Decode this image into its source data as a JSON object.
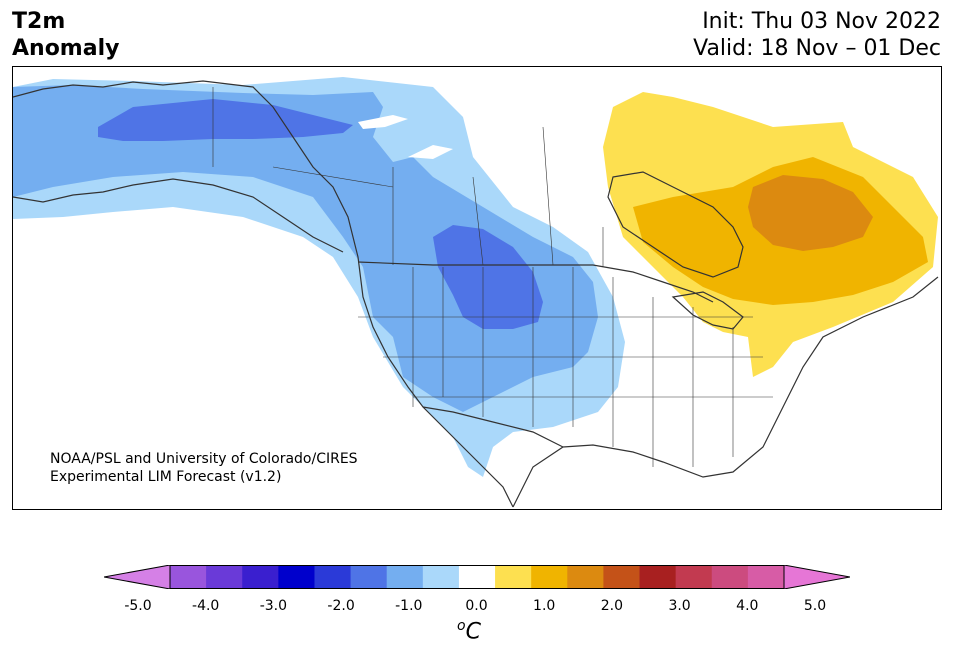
{
  "title": {
    "line1": "T2m",
    "line2": "Anomaly",
    "init": "Init: Thu 03 Nov 2022",
    "valid": "Valid: 18 Nov – 01 Dec"
  },
  "credit": {
    "line1": "NOAA/PSL and University of Colorado/CIRES",
    "line2": "Experimental LIM Forecast (v1.2)"
  },
  "colorbar": {
    "colors": [
      "#d580e6",
      "#9955dd",
      "#6a3ad8",
      "#3a1fcf",
      "#0000cc",
      "#2b3ad8",
      "#4f74e6",
      "#74aef0",
      "#aad8fa",
      "#ffffff",
      "#fde050",
      "#f0b400",
      "#dc8a10",
      "#c45218",
      "#a82020",
      "#c23a50",
      "#cc4b7f",
      "#d75ca6",
      "#e676d6"
    ],
    "ticks": [
      "-5.0",
      "-4.0",
      "-3.0",
      "-2.0",
      "-1.0",
      "0.0",
      "1.0",
      "2.0",
      "3.0",
      "4.0",
      "5.0"
    ],
    "unit": "C",
    "unit_sup": "o"
  },
  "map": {
    "region": "North America",
    "anomaly_colors": {
      "light_blue": "#aad8fa",
      "mid_blue": "#74aef0",
      "dark_blue": "#4f74e6",
      "yellow": "#fde050",
      "gold": "#f0b400",
      "orange": "#dc8a10"
    }
  }
}
